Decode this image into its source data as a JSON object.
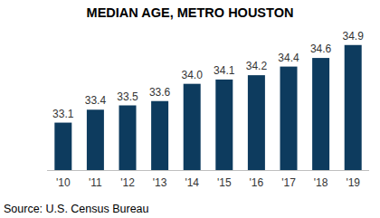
{
  "chart_data": {
    "type": "bar",
    "title": "MEDIAN AGE, METRO HOUSTON",
    "categories": [
      "'10",
      "'11",
      "'12",
      "'13",
      "'14",
      "'15",
      "'16",
      "'17",
      "'18",
      "'19"
    ],
    "values": [
      33.1,
      33.4,
      33.5,
      33.6,
      34.0,
      34.1,
      34.2,
      34.4,
      34.6,
      34.9
    ],
    "value_labels": [
      "33.1",
      "33.4",
      "33.5",
      "33.6",
      "34.0",
      "34.1",
      "34.2",
      "34.4",
      "34.6",
      "34.9"
    ],
    "color": "#0d3b5e",
    "ylim": [
      32,
      35
    ],
    "grid": false,
    "data_labels": true,
    "tick_labels": "x",
    "source": "Source: U.S. Census Bureau"
  }
}
